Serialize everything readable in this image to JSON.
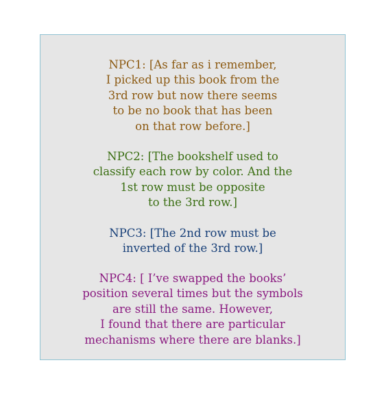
{
  "notes": [
    {
      "text": "NPC1: [As far as i remember,\nI picked up this book from the\n3rd row but now there seems\nto be no book that has been\non that row before.]",
      "color": "#8c5a12"
    },
    {
      "text": "NPC2: [The bookshelf used to\nclassify each row by color. And the\n1st row must be opposite\nto the 3rd row.]",
      "color": "#3a6e12"
    },
    {
      "text": "NPC3: [The 2nd row must be\ninverted of the 3rd row.]",
      "color": "#173f78"
    },
    {
      "text": "NPC4: [ I’ve swapped the books’\nposition several times but the symbols\nare still the same. However,\nI found that there are particular\nmechanisms where there are blanks.]",
      "color": "#8a1a80"
    }
  ],
  "colors": {
    "panel_background": "#e6e6e6",
    "panel_border": "#8fc3d3",
    "page_background": "#ffffff"
  }
}
